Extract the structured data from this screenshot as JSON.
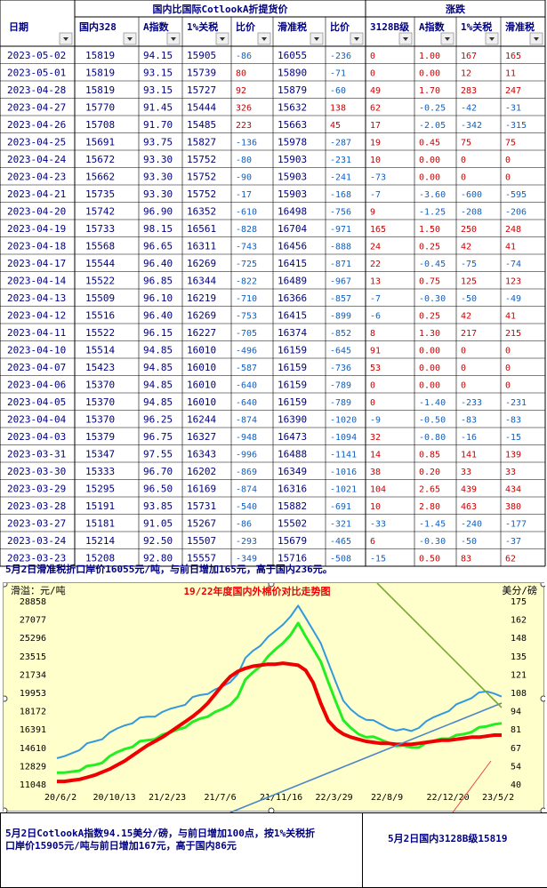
{
  "table": {
    "group_headers": {
      "compare": "国内比国际CotlookA折提货价",
      "change": "涨跌"
    },
    "columns": [
      "日期",
      "国内328",
      "A指数",
      "1%关税",
      "比价",
      "滑准税",
      "比价",
      "3128B级",
      "A指数",
      "1%关税",
      "滑准税"
    ],
    "rows": [
      [
        "2023-05-02",
        "15819",
        "94.15",
        "15905",
        "-86",
        "16055",
        "-236",
        "0",
        "1.00",
        "167",
        "165"
      ],
      [
        "2023-05-01",
        "15819",
        "93.15",
        "15739",
        "80",
        "15890",
        "-71",
        "0",
        "0.00",
        "12",
        "11"
      ],
      [
        "2023-04-28",
        "15819",
        "93.15",
        "15727",
        "92",
        "15879",
        "-60",
        "49",
        "1.70",
        "283",
        "247"
      ],
      [
        "2023-04-27",
        "15770",
        "91.45",
        "15444",
        "326",
        "15632",
        "138",
        "62",
        "-0.25",
        "-42",
        "-31"
      ],
      [
        "2023-04-26",
        "15708",
        "91.70",
        "15485",
        "223",
        "15663",
        "45",
        "17",
        "-2.05",
        "-342",
        "-315"
      ],
      [
        "2023-04-25",
        "15691",
        "93.75",
        "15827",
        "-136",
        "15978",
        "-287",
        "19",
        "0.45",
        "75",
        "75"
      ],
      [
        "2023-04-24",
        "15672",
        "93.30",
        "15752",
        "-80",
        "15903",
        "-231",
        "10",
        "0.00",
        "0",
        "0"
      ],
      [
        "2023-04-23",
        "15662",
        "93.30",
        "15752",
        "-90",
        "15903",
        "-241",
        "-73",
        "0.00",
        "0",
        "0"
      ],
      [
        "2023-04-21",
        "15735",
        "93.30",
        "15752",
        "-17",
        "15903",
        "-168",
        "-7",
        "-3.60",
        "-600",
        "-595"
      ],
      [
        "2023-04-20",
        "15742",
        "96.90",
        "16352",
        "-610",
        "16498",
        "-756",
        "9",
        "-1.25",
        "-208",
        "-206"
      ],
      [
        "2023-04-19",
        "15733",
        "98.15",
        "16561",
        "-828",
        "16704",
        "-971",
        "165",
        "1.50",
        "250",
        "248"
      ],
      [
        "2023-04-18",
        "15568",
        "96.65",
        "16311",
        "-743",
        "16456",
        "-888",
        "24",
        "0.25",
        "42",
        "41"
      ],
      [
        "2023-04-17",
        "15544",
        "96.40",
        "16269",
        "-725",
        "16415",
        "-871",
        "22",
        "-0.45",
        "-75",
        "-74"
      ],
      [
        "2023-04-14",
        "15522",
        "96.85",
        "16344",
        "-822",
        "16489",
        "-967",
        "13",
        "0.75",
        "125",
        "123"
      ],
      [
        "2023-04-13",
        "15509",
        "96.10",
        "16219",
        "-710",
        "16366",
        "-857",
        "-7",
        "-0.30",
        "-50",
        "-49"
      ],
      [
        "2023-04-12",
        "15516",
        "96.40",
        "16269",
        "-753",
        "16415",
        "-899",
        "-6",
        "0.25",
        "42",
        "41"
      ],
      [
        "2023-04-11",
        "15522",
        "96.15",
        "16227",
        "-705",
        "16374",
        "-852",
        "8",
        "1.30",
        "217",
        "215"
      ],
      [
        "2023-04-10",
        "15514",
        "94.85",
        "16010",
        "-496",
        "16159",
        "-645",
        "91",
        "0.00",
        "0",
        "0"
      ],
      [
        "2023-04-07",
        "15423",
        "94.85",
        "16010",
        "-587",
        "16159",
        "-736",
        "53",
        "0.00",
        "0",
        "0"
      ],
      [
        "2023-04-06",
        "15370",
        "94.85",
        "16010",
        "-640",
        "16159",
        "-789",
        "0",
        "0.00",
        "0",
        "0"
      ],
      [
        "2023-04-05",
        "15370",
        "94.85",
        "16010",
        "-640",
        "16159",
        "-789",
        "0",
        "-1.40",
        "-233",
        "-231"
      ],
      [
        "2023-04-04",
        "15370",
        "96.25",
        "16244",
        "-874",
        "16390",
        "-1020",
        "-9",
        "-0.50",
        "-83",
        "-83"
      ],
      [
        "2023-04-03",
        "15379",
        "96.75",
        "16327",
        "-948",
        "16473",
        "-1094",
        "32",
        "-0.80",
        "-16",
        "-15"
      ],
      [
        "2023-03-31",
        "15347",
        "97.55",
        "16343",
        "-996",
        "16488",
        "-1141",
        "14",
        "0.85",
        "141",
        "139"
      ],
      [
        "2023-03-30",
        "15333",
        "96.70",
        "16202",
        "-869",
        "16349",
        "-1016",
        "38",
        "0.20",
        "33",
        "33"
      ],
      [
        "2023-03-29",
        "15295",
        "96.50",
        "16169",
        "-874",
        "16316",
        "-1021",
        "104",
        "2.65",
        "439",
        "434"
      ],
      [
        "2023-03-28",
        "15191",
        "93.85",
        "15731",
        "-540",
        "15882",
        "-691",
        "10",
        "2.80",
        "463",
        "380"
      ],
      [
        "2023-03-27",
        "15181",
        "91.05",
        "15267",
        "-86",
        "15502",
        "-321",
        "-33",
        "-1.45",
        "-240",
        "-177"
      ],
      [
        "2023-03-24",
        "15214",
        "92.50",
        "15507",
        "-293",
        "15679",
        "-465",
        "6",
        "-0.30",
        "-50",
        "-37"
      ],
      [
        "2023-03-23",
        "15208",
        "92.80",
        "15557",
        "-349",
        "15716",
        "-508",
        "-15",
        "0.50",
        "83",
        "62"
      ]
    ]
  },
  "note_top": "5月2日滑准税折口岸价16055元/吨，与前日增加165元，高于国内236元。",
  "note_bottom_left": "5月2日CotlookA指数94.15美分/磅，与前日增加100点，按1%关税折口岸价15905元/吨与前日增加167元，高于国内86元",
  "note_bottom_right": "5月2日国内3128B级15819",
  "colors": {
    "header_text": "#000080",
    "body_text": "#000080",
    "positive": "#cc0000",
    "negative": "#1060c0",
    "chart_bg": "#ffffcc",
    "series_blue": "#3399dd",
    "series_green": "#22ee22",
    "series_red": "#ee0000",
    "title_red": "#ee0000"
  },
  "chart_data": {
    "type": "line",
    "title": "19/22年度国内外棉价对比走势图",
    "ylabel_left": "滑溢：元/吨",
    "ylabel_right": "美分/磅",
    "y_left_ticks": [
      "28858",
      "27077",
      "25296",
      "23515",
      "21734",
      "19953",
      "18172",
      "16391",
      "14610",
      "12829",
      "11048"
    ],
    "y_right_ticks": [
      "175",
      "162",
      "148",
      "135",
      "121",
      "108",
      "94",
      "81",
      "67",
      "54",
      "40"
    ],
    "x_ticks": [
      "20/6/2",
      "20/10/13",
      "21/2/23",
      "21/7/6",
      "21/11/16",
      "22/3/29",
      "22/8/9",
      "22/12/20",
      "23/5/2"
    ],
    "ylim_left": [
      11048,
      28858
    ],
    "ylim_right": [
      40,
      175
    ],
    "series": [
      {
        "color": "#3399dd",
        "values": [
          13400,
          13700,
          14100,
          14500,
          14900,
          15200,
          15500,
          15900,
          16400,
          16800,
          17100,
          17400,
          17600,
          17700,
          17900,
          18300,
          18600,
          18900,
          19400,
          19700,
          19900,
          20100,
          20500,
          21000,
          21900,
          23200,
          24000,
          24600,
          25200,
          25900,
          26600,
          27500,
          28300,
          27200,
          26100,
          24600,
          22800,
          21000,
          19300,
          18200,
          17700,
          17400,
          17100,
          16800,
          16500,
          16400,
          16300,
          16200,
          16600,
          17000,
          17500,
          17900,
          18300,
          18700,
          19100,
          19500,
          19800,
          20000,
          19900,
          19700
        ]
      },
      {
        "color": "#22ee22",
        "values": [
          12000,
          12100,
          12300,
          12500,
          12700,
          12900,
          13200,
          13600,
          14100,
          14500,
          14800,
          15100,
          15300,
          15500,
          15700,
          16000,
          16400,
          16700,
          17000,
          17400,
          17700,
          17900,
          18300,
          18800,
          19700,
          21100,
          21900,
          22600,
          23300,
          24100,
          24800,
          25700,
          26600,
          25400,
          24300,
          22800,
          20900,
          19100,
          17400,
          16400,
          15900,
          15700,
          15500,
          15300,
          15100,
          14900,
          14700,
          14600,
          14700,
          14900,
          15200,
          15500,
          15600,
          15700,
          15900,
          16200,
          16400,
          16600,
          16900,
          17100
        ]
      },
      {
        "color": "#ee0000",
        "values": [
          11300,
          11300,
          11400,
          11500,
          11700,
          11900,
          12200,
          12500,
          12900,
          13300,
          13800,
          14300,
          14800,
          15200,
          15600,
          16100,
          16600,
          17100,
          17600,
          18200,
          18900,
          19800,
          20700,
          21500,
          22000,
          22300,
          22500,
          22600,
          22700,
          22700,
          22800,
          22700,
          22600,
          22100,
          20900,
          18900,
          17200,
          16400,
          15900,
          15600,
          15400,
          15200,
          15100,
          15000,
          15000,
          14900,
          14900,
          14900,
          15000,
          15100,
          15200,
          15300,
          15300,
          15400,
          15500,
          15600,
          15600,
          15700,
          15800,
          15800
        ]
      }
    ]
  }
}
